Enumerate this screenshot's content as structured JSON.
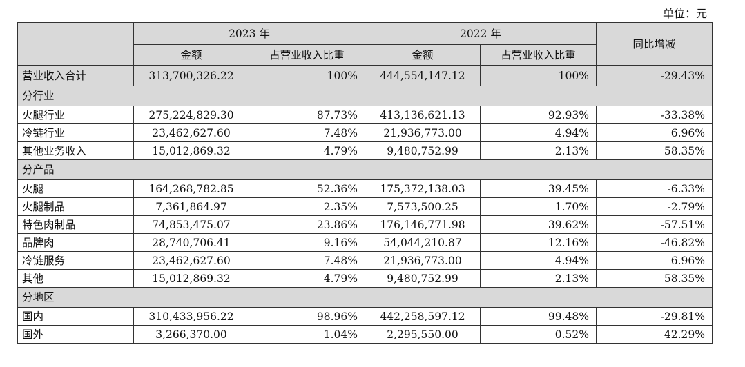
{
  "unit_label": "单位：元",
  "header": {
    "year_2023": "2023 年",
    "year_2022": "2022 年",
    "amount": "金额",
    "share": "占营业收入比重",
    "yoy": "同比增减"
  },
  "total": {
    "label": "营业收入合计",
    "amount_2023": "313,700,326.22",
    "share_2023": "100%",
    "amount_2022": "444,554,147.12",
    "share_2022": "100%",
    "yoy": "-29.43%"
  },
  "sections": [
    {
      "title": "分行业",
      "rows": [
        {
          "label": "火腿行业",
          "amount_2023": "275,224,829.30",
          "share_2023": "87.73%",
          "amount_2022": "413,136,621.13",
          "share_2022": "92.93%",
          "yoy": "-33.38%"
        },
        {
          "label": "冷链行业",
          "amount_2023": "23,462,627.60",
          "share_2023": "7.48%",
          "amount_2022": "21,936,773.00",
          "share_2022": "4.94%",
          "yoy": "6.96%"
        },
        {
          "label": "其他业务收入",
          "amount_2023": "15,012,869.32",
          "share_2023": "4.79%",
          "amount_2022": "9,480,752.99",
          "share_2022": "2.13%",
          "yoy": "58.35%"
        }
      ]
    },
    {
      "title": "分产品",
      "rows": [
        {
          "label": "火腿",
          "amount_2023": "164,268,782.85",
          "share_2023": "52.36%",
          "amount_2022": "175,372,138.03",
          "share_2022": "39.45%",
          "yoy": "-6.33%"
        },
        {
          "label": "火腿制品",
          "amount_2023": "7,361,864.97",
          "share_2023": "2.35%",
          "amount_2022": "7,573,500.25",
          "share_2022": "1.70%",
          "yoy": "-2.79%"
        },
        {
          "label": "特色肉制品",
          "amount_2023": "74,853,475.07",
          "share_2023": "23.86%",
          "amount_2022": "176,146,771.98",
          "share_2022": "39.62%",
          "yoy": "-57.51%"
        },
        {
          "label": "品牌肉",
          "amount_2023": "28,740,706.41",
          "share_2023": "9.16%",
          "amount_2022": "54,044,210.87",
          "share_2022": "12.16%",
          "yoy": "-46.82%"
        },
        {
          "label": "冷链服务",
          "amount_2023": "23,462,627.60",
          "share_2023": "7.48%",
          "amount_2022": "21,936,773.00",
          "share_2022": "4.94%",
          "yoy": "6.96%"
        },
        {
          "label": "其他",
          "amount_2023": "15,012,869.32",
          "share_2023": "4.79%",
          "amount_2022": "9,480,752.99",
          "share_2022": "2.13%",
          "yoy": "58.35%"
        }
      ]
    },
    {
      "title": "分地区",
      "rows": [
        {
          "label": "国内",
          "amount_2023": "310,433,956.22",
          "share_2023": "98.96%",
          "amount_2022": "442,258,597.12",
          "share_2022": "99.48%",
          "yoy": "-29.81%"
        },
        {
          "label": "国外",
          "amount_2023": "3,266,370.00",
          "share_2023": "1.04%",
          "amount_2022": "2,295,550.00",
          "share_2022": "0.52%",
          "yoy": "42.29%"
        }
      ]
    }
  ]
}
